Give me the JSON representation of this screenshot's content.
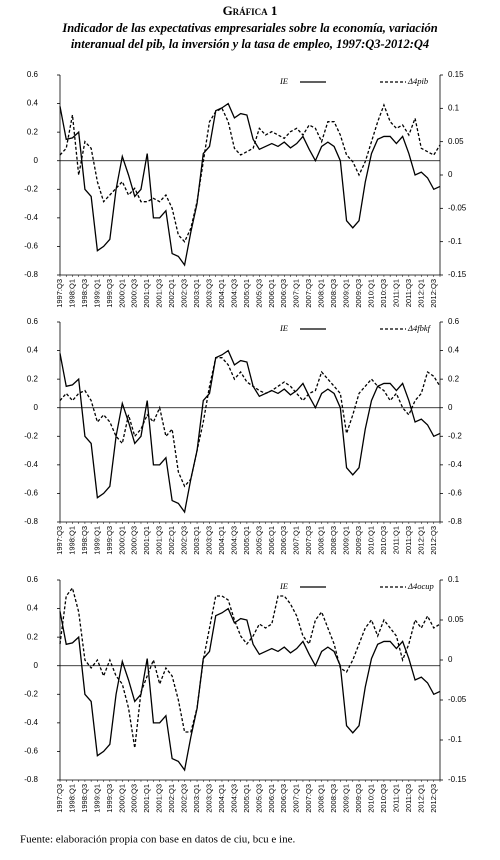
{
  "header": {
    "title": "Gráfica 1",
    "subtitle_line1": "Indicador de las expectativas empresariales sobre la economía, variación",
    "subtitle_line2": "interanual del pib, la inversión y la tasa de empleo, 1997:Q3-2012:Q4"
  },
  "footer": {
    "source": "Fuente: elaboración propia con base en datos de ciu, bcu e ine."
  },
  "chart_data": [
    {
      "type": "line",
      "categories": [
        "1997:Q3",
        null,
        "1998:Q1",
        null,
        "1998:Q3",
        null,
        "1999:Q1",
        null,
        "1999:Q3",
        null,
        "2000:Q1",
        null,
        "2000:Q3",
        null,
        "2001:Q1",
        null,
        "2001:Q3",
        null,
        "2002:Q1",
        null,
        "2002:Q3",
        null,
        "2003:Q1",
        null,
        "2003:Q3",
        null,
        "2004:Q1",
        null,
        "2004:Q3",
        null,
        "2005:Q1",
        null,
        "2005:Q3",
        null,
        "2006:Q1",
        null,
        "2006:Q3",
        null,
        "2007:Q1",
        null,
        "2007:Q3",
        null,
        "2008:Q1",
        null,
        "2008:Q3",
        null,
        "2009:Q1",
        null,
        "2009:Q3",
        null,
        "2010:Q1",
        null,
        "2010:Q3",
        null,
        "2011:Q1",
        null,
        "2011:Q3",
        null,
        "2012:Q1",
        null,
        "2012:Q3",
        null
      ],
      "ylim": [
        -0.8,
        0.6
      ],
      "yticks": [
        -0.8,
        -0.6,
        -0.4,
        -0.2,
        0,
        0.2,
        0.4,
        0.6
      ],
      "y2lim": [
        -0.15,
        0.15
      ],
      "y2ticks": [
        -0.15,
        -0.1,
        -0.05,
        0,
        0.05,
        0.1,
        0.15
      ],
      "series": [
        {
          "name": "IE",
          "color": "#000000",
          "dash": "solid",
          "values": [
            0.38,
            0.15,
            0.16,
            0.2,
            -0.2,
            -0.25,
            -0.63,
            -0.6,
            -0.55,
            -0.2,
            0.03,
            -0.1,
            -0.25,
            -0.2,
            0.05,
            -0.4,
            -0.4,
            -0.35,
            -0.65,
            -0.67,
            -0.73,
            -0.5,
            -0.3,
            0.05,
            0.1,
            0.35,
            0.37,
            0.4,
            0.3,
            0.33,
            0.32,
            0.15,
            0.08,
            0.1,
            0.12,
            0.1,
            0.13,
            0.09,
            0.12,
            0.17,
            0.08,
            0.0,
            0.1,
            0.13,
            0.1,
            0.0,
            -0.42,
            -0.47,
            -0.42,
            -0.15,
            0.05,
            0.15,
            0.17,
            0.17,
            0.12,
            0.17,
            0.05,
            -0.1,
            -0.08,
            -0.12,
            -0.2,
            -0.18
          ]
        },
        {
          "name": "Δ4pib",
          "color": "#000000",
          "dash": "dashed",
          "axis": "y2",
          "values": [
            0.03,
            0.04,
            0.09,
            0.0,
            0.05,
            0.04,
            -0.01,
            -0.04,
            -0.03,
            -0.02,
            -0.01,
            -0.03,
            -0.02,
            -0.04,
            -0.04,
            -0.035,
            -0.04,
            -0.03,
            -0.05,
            -0.09,
            -0.1,
            -0.08,
            -0.04,
            0.02,
            0.08,
            0.095,
            0.1,
            0.08,
            0.04,
            0.03,
            0.035,
            0.04,
            0.07,
            0.06,
            0.065,
            0.06,
            0.055,
            0.065,
            0.07,
            0.06,
            0.075,
            0.07,
            0.05,
            0.08,
            0.08,
            0.06,
            0.03,
            0.02,
            0.0,
            0.02,
            0.05,
            0.08,
            0.105,
            0.08,
            0.07,
            0.075,
            0.06,
            0.085,
            0.04,
            0.035,
            0.03,
            0.045
          ]
        }
      ]
    },
    {
      "type": "line",
      "categories": [
        "1997:Q3",
        null,
        "1998:Q1",
        null,
        "1998:Q3",
        null,
        "1999:Q1",
        null,
        "1999:Q3",
        null,
        "2000:Q1",
        null,
        "2000:Q3",
        null,
        "2001:Q1",
        null,
        "2001:Q3",
        null,
        "2002:Q1",
        null,
        "2002:Q3",
        null,
        "2003:Q1",
        null,
        "2003:Q3",
        null,
        "2004:Q1",
        null,
        "2004:Q3",
        null,
        "2005:Q1",
        null,
        "2005:Q3",
        null,
        "2006:Q1",
        null,
        "2006:Q3",
        null,
        "2007:Q1",
        null,
        "2007:Q3",
        null,
        "2008:Q1",
        null,
        "2008:Q3",
        null,
        "2009:Q1",
        null,
        "2009:Q3",
        null,
        "2010:Q1",
        null,
        "2010:Q3",
        null,
        "2011:Q1",
        null,
        "2011:Q3",
        null,
        "2012:Q1",
        null,
        "2012:Q3",
        null
      ],
      "ylim": [
        -0.8,
        0.6
      ],
      "yticks": [
        -0.8,
        -0.6,
        -0.4,
        -0.2,
        0,
        0.2,
        0.4,
        0.6
      ],
      "y2lim": [
        -0.8,
        0.6
      ],
      "y2ticks": [
        -0.8,
        -0.6,
        -0.4,
        -0.2,
        0,
        0.2,
        0.4,
        0.6
      ],
      "series": [
        {
          "name": "IE",
          "color": "#000000",
          "dash": "solid",
          "values": [
            0.38,
            0.15,
            0.16,
            0.2,
            -0.2,
            -0.25,
            -0.63,
            -0.6,
            -0.55,
            -0.2,
            0.03,
            -0.1,
            -0.25,
            -0.2,
            0.05,
            -0.4,
            -0.4,
            -0.35,
            -0.65,
            -0.67,
            -0.73,
            -0.5,
            -0.3,
            0.05,
            0.1,
            0.35,
            0.37,
            0.4,
            0.3,
            0.33,
            0.32,
            0.15,
            0.08,
            0.1,
            0.12,
            0.1,
            0.13,
            0.09,
            0.12,
            0.17,
            0.08,
            0.0,
            0.1,
            0.13,
            0.1,
            0.0,
            -0.42,
            -0.47,
            -0.42,
            -0.15,
            0.05,
            0.15,
            0.17,
            0.17,
            0.12,
            0.17,
            0.05,
            -0.1,
            -0.08,
            -0.12,
            -0.2,
            -0.18
          ]
        },
        {
          "name": "Δ4fbkf",
          "color": "#000000",
          "dash": "dashed",
          "axis": "y2",
          "values": [
            0.05,
            0.1,
            0.05,
            0.1,
            0.12,
            0.05,
            -0.1,
            -0.05,
            -0.1,
            -0.2,
            -0.25,
            -0.05,
            -0.2,
            -0.15,
            -0.05,
            -0.1,
            0.0,
            -0.2,
            -0.15,
            -0.45,
            -0.55,
            -0.5,
            -0.3,
            -0.1,
            0.15,
            0.35,
            0.35,
            0.3,
            0.2,
            0.25,
            0.18,
            0.15,
            0.12,
            0.1,
            0.12,
            0.15,
            0.18,
            0.15,
            0.1,
            0.05,
            0.1,
            0.12,
            0.25,
            0.2,
            0.15,
            0.1,
            -0.18,
            -0.05,
            0.1,
            0.15,
            0.2,
            0.15,
            0.12,
            0.05,
            0.1,
            0.0,
            -0.05,
            0.05,
            0.1,
            0.25,
            0.22,
            0.15
          ]
        }
      ]
    },
    {
      "type": "line",
      "categories": [
        "1997:Q3",
        null,
        "1998:Q1",
        null,
        "1998:Q3",
        null,
        "1999:Q1",
        null,
        "1999:Q3",
        null,
        "2000:Q1",
        null,
        "2000:Q3",
        null,
        "2001:Q1",
        null,
        "2001:Q3",
        null,
        "2002:Q1",
        null,
        "2002:Q3",
        null,
        "2003:Q1",
        null,
        "2003:Q3",
        null,
        "2004:Q1",
        null,
        "2004:Q3",
        null,
        "2005:Q1",
        null,
        "2005:Q3",
        null,
        "2006:Q1",
        null,
        "2006:Q3",
        null,
        "2007:Q1",
        null,
        "2007:Q3",
        null,
        "2008:Q1",
        null,
        "2008:Q3",
        null,
        "2009:Q1",
        null,
        "2009:Q3",
        null,
        "2010:Q1",
        null,
        "2010:Q3",
        null,
        "2011:Q1",
        null,
        "2011:Q3",
        null,
        "2012:Q1",
        null,
        "2012:Q3",
        null
      ],
      "ylim": [
        -0.8,
        0.6
      ],
      "yticks": [
        -0.8,
        -0.6,
        -0.4,
        -0.2,
        0,
        0.2,
        0.4,
        0.6
      ],
      "y2lim": [
        -0.15,
        0.1
      ],
      "y2ticks": [
        -0.15,
        -0.1,
        -0.05,
        0,
        0.05,
        0.1
      ],
      "series": [
        {
          "name": "IE",
          "color": "#000000",
          "dash": "solid",
          "values": [
            0.38,
            0.15,
            0.16,
            0.2,
            -0.2,
            -0.25,
            -0.63,
            -0.6,
            -0.55,
            -0.2,
            0.03,
            -0.1,
            -0.25,
            -0.2,
            0.05,
            -0.4,
            -0.4,
            -0.35,
            -0.65,
            -0.67,
            -0.73,
            -0.5,
            -0.3,
            0.05,
            0.1,
            0.35,
            0.37,
            0.4,
            0.3,
            0.33,
            0.32,
            0.15,
            0.08,
            0.1,
            0.12,
            0.1,
            0.13,
            0.09,
            0.12,
            0.17,
            0.08,
            0.0,
            0.1,
            0.13,
            0.1,
            0.0,
            -0.42,
            -0.47,
            -0.42,
            -0.15,
            0.05,
            0.15,
            0.17,
            0.17,
            0.12,
            0.17,
            0.05,
            -0.1,
            -0.08,
            -0.12,
            -0.2,
            -0.18
          ]
        },
        {
          "name": "Δ4ocup",
          "color": "#000000",
          "dash": "dashed",
          "axis": "y2",
          "values": [
            0.02,
            0.08,
            0.09,
            0.06,
            0.0,
            -0.01,
            0.0,
            -0.02,
            0.0,
            -0.02,
            -0.03,
            -0.06,
            -0.11,
            -0.04,
            -0.02,
            0.0,
            -0.03,
            -0.01,
            -0.02,
            -0.05,
            -0.09,
            -0.09,
            -0.06,
            0.0,
            0.04,
            0.08,
            0.08,
            0.075,
            0.05,
            0.03,
            0.02,
            0.03,
            0.045,
            0.04,
            0.045,
            0.08,
            0.08,
            0.07,
            0.055,
            0.03,
            0.02,
            0.05,
            0.06,
            0.04,
            0.02,
            -0.01,
            -0.015,
            0.0,
            0.02,
            0.04,
            0.05,
            0.03,
            0.05,
            0.04,
            0.03,
            0.0,
            0.02,
            0.05,
            0.04,
            0.055,
            0.04,
            0.045
          ]
        }
      ]
    }
  ]
}
